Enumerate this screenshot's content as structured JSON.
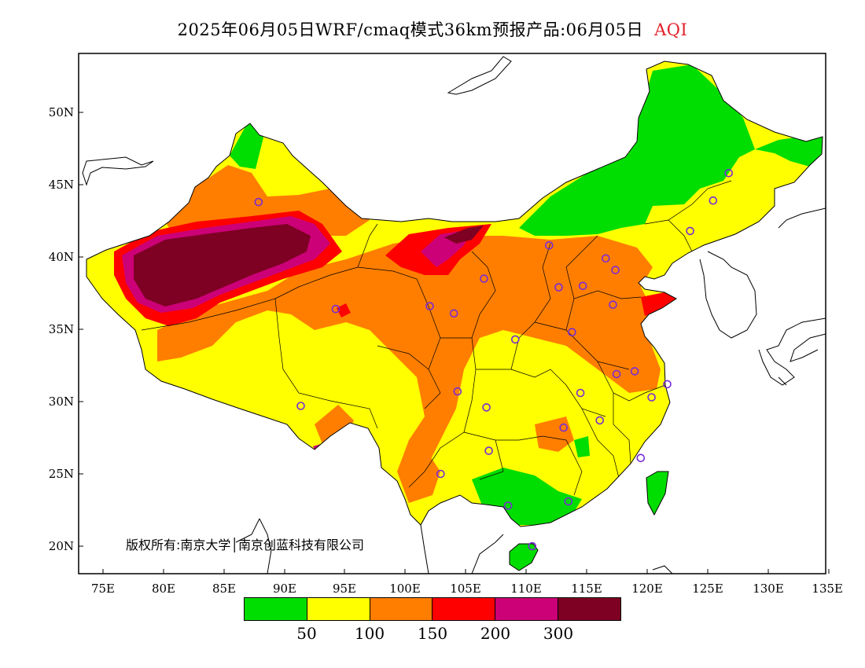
{
  "title": {
    "main": "2025年06月05日WRF/cmaq模式36km预报产品:06月05日",
    "variable": "AQI"
  },
  "axes": {
    "lat_ticks": [
      "50N",
      "45N",
      "40N",
      "35N",
      "30N",
      "25N",
      "20N"
    ],
    "lon_ticks": [
      "75E",
      "80E",
      "85E",
      "90E",
      "95E",
      "100E",
      "105E",
      "110E",
      "115E",
      "120E",
      "125E",
      "130E",
      "135E"
    ],
    "lon_range": [
      73,
      135
    ],
    "lat_range": [
      18,
      54
    ]
  },
  "copyright": "版权所有:南京大学│南京创蓝科技有限公司",
  "legend": {
    "colors": [
      "#00dd00",
      "#ffff00",
      "#ff7e00",
      "#ff0000",
      "#cc0077",
      "#7e0023"
    ],
    "labels": [
      "50",
      "100",
      "150",
      "200",
      "300"
    ]
  },
  "aqi_categories": [
    {
      "range": "0-50",
      "color": "#00dd00"
    },
    {
      "range": "50-100",
      "color": "#ffff00"
    },
    {
      "range": "100-150",
      "color": "#ff7e00"
    },
    {
      "range": "150-200",
      "color": "#ff0000"
    },
    {
      "range": "200-300",
      "color": "#cc0077"
    },
    {
      "range": ">300",
      "color": "#7e0023"
    }
  ],
  "stations": [
    {
      "lon": 87.6,
      "lat": 43.8
    },
    {
      "lon": 91.1,
      "lat": 29.7
    },
    {
      "lon": 94.0,
      "lat": 36.4
    },
    {
      "lon": 101.8,
      "lat": 36.6
    },
    {
      "lon": 103.8,
      "lat": 36.1
    },
    {
      "lon": 106.3,
      "lat": 38.5
    },
    {
      "lon": 104.1,
      "lat": 30.7
    },
    {
      "lon": 106.5,
      "lat": 29.6
    },
    {
      "lon": 106.7,
      "lat": 26.6
    },
    {
      "lon": 102.7,
      "lat": 25.0
    },
    {
      "lon": 108.3,
      "lat": 22.8
    },
    {
      "lon": 110.3,
      "lat": 20.0
    },
    {
      "lon": 113.3,
      "lat": 23.1
    },
    {
      "lon": 112.9,
      "lat": 28.2
    },
    {
      "lon": 114.3,
      "lat": 30.6
    },
    {
      "lon": 115.9,
      "lat": 28.7
    },
    {
      "lon": 119.3,
      "lat": 26.1
    },
    {
      "lon": 120.2,
      "lat": 30.3
    },
    {
      "lon": 121.5,
      "lat": 31.2
    },
    {
      "lon": 118.8,
      "lat": 32.1
    },
    {
      "lon": 117.3,
      "lat": 31.9
    },
    {
      "lon": 113.6,
      "lat": 34.8
    },
    {
      "lon": 108.9,
      "lat": 34.3
    },
    {
      "lon": 112.5,
      "lat": 37.9
    },
    {
      "lon": 114.5,
      "lat": 38.0
    },
    {
      "lon": 117.0,
      "lat": 36.7
    },
    {
      "lon": 117.2,
      "lat": 39.1
    },
    {
      "lon": 116.4,
      "lat": 39.9
    },
    {
      "lon": 111.7,
      "lat": 40.8
    },
    {
      "lon": 123.4,
      "lat": 41.8
    },
    {
      "lon": 125.3,
      "lat": 43.9
    },
    {
      "lon": 126.6,
      "lat": 45.8
    }
  ]
}
